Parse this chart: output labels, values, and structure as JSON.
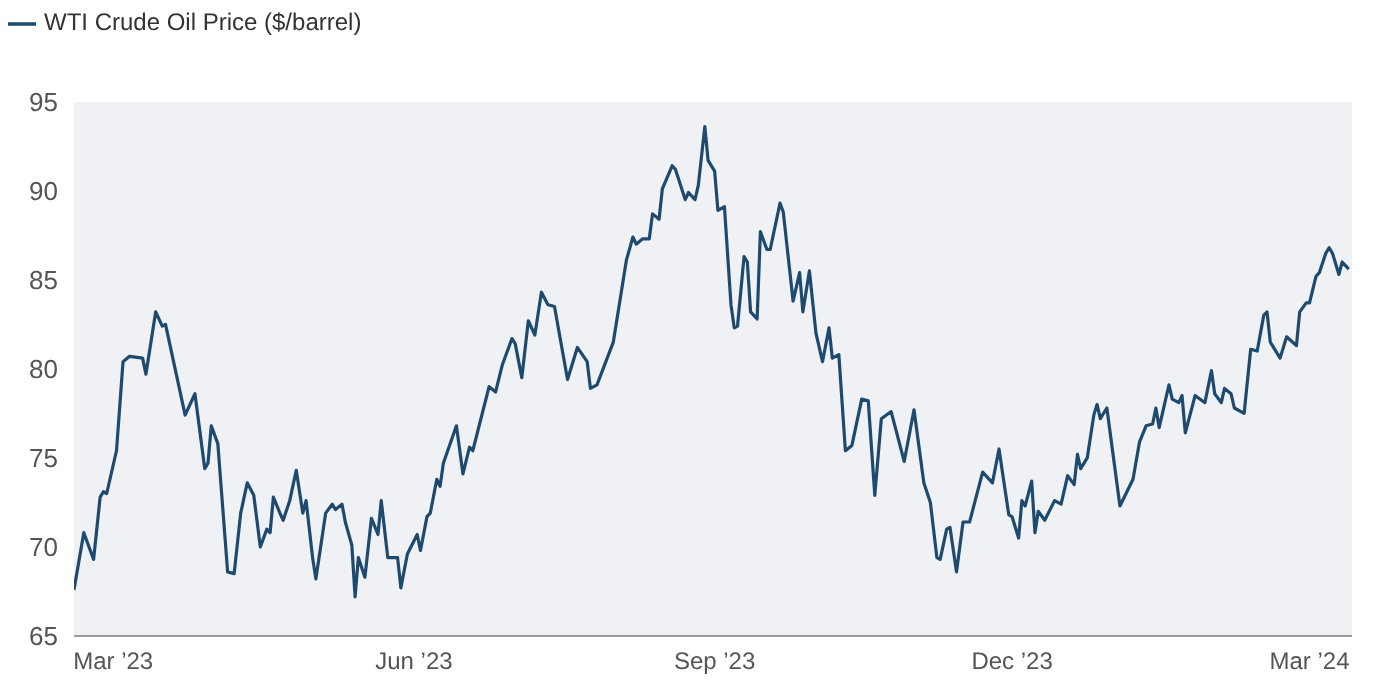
{
  "chart_data": {
    "type": "line",
    "legend": "top left",
    "marker": "none",
    "line_style": "solid",
    "grid": false,
    "x": [
      "2023-02-17",
      "2023-02-20",
      "2023-02-23",
      "2023-02-25",
      "2023-02-26",
      "2023-02-27",
      "2023-03-02",
      "2023-03-04",
      "2023-03-06",
      "2023-03-10",
      "2023-03-11",
      "2023-03-14",
      "2023-03-16",
      "2023-03-17",
      "2023-03-19",
      "2023-03-23",
      "2023-03-26",
      "2023-03-29",
      "2023-03-30",
      "2023-03-31",
      "2023-04-02",
      "2023-04-05",
      "2023-04-07",
      "2023-04-09",
      "2023-04-11",
      "2023-04-13",
      "2023-04-15",
      "2023-04-17",
      "2023-04-18",
      "2023-04-19",
      "2023-04-21",
      "2023-04-22",
      "2023-04-24",
      "2023-04-26",
      "2023-04-28",
      "2023-04-29",
      "2023-05-01",
      "2023-05-02",
      "2023-05-05",
      "2023-05-07",
      "2023-05-08",
      "2023-05-10",
      "2023-05-11",
      "2023-05-13",
      "2023-05-14",
      "2023-05-15",
      "2023-05-17",
      "2023-05-19",
      "2023-05-21",
      "2023-05-22",
      "2023-05-24",
      "2023-05-27",
      "2023-05-28",
      "2023-05-30",
      "2023-06-02",
      "2023-06-03",
      "2023-06-05",
      "2023-06-06",
      "2023-06-08",
      "2023-06-09",
      "2023-06-10",
      "2023-06-14",
      "2023-06-16",
      "2023-06-18",
      "2023-06-19",
      "2023-06-24",
      "2023-06-26",
      "2023-06-28",
      "2023-07-01",
      "2023-07-02",
      "2023-07-04",
      "2023-07-06",
      "2023-07-08",
      "2023-07-10",
      "2023-07-12",
      "2023-07-14",
      "2023-07-18",
      "2023-07-21",
      "2023-07-24",
      "2023-07-25",
      "2023-07-27",
      "2023-08-01",
      "2023-08-05",
      "2023-08-07",
      "2023-08-08",
      "2023-08-10",
      "2023-08-12",
      "2023-08-13",
      "2023-08-15",
      "2023-08-16",
      "2023-08-19",
      "2023-08-20",
      "2023-08-23",
      "2023-08-24",
      "2023-08-26",
      "2023-08-27",
      "2023-08-29",
      "2023-08-30",
      "2023-09-01",
      "2023-09-02",
      "2023-09-04",
      "2023-09-06",
      "2023-09-07",
      "2023-09-08",
      "2023-09-10",
      "2023-09-11",
      "2023-09-12",
      "2023-09-14",
      "2023-09-15",
      "2023-09-17",
      "2023-09-18",
      "2023-09-21",
      "2023-09-22",
      "2023-09-25",
      "2023-09-27",
      "2023-09-28",
      "2023-09-30",
      "2023-10-02",
      "2023-10-04",
      "2023-10-06",
      "2023-10-07",
      "2023-10-09",
      "2023-10-11",
      "2023-10-13",
      "2023-10-16",
      "2023-10-18",
      "2023-10-20",
      "2023-10-22",
      "2023-10-25",
      "2023-10-29",
      "2023-11-01",
      "2023-11-04",
      "2023-11-06",
      "2023-11-08",
      "2023-11-09",
      "2023-11-11",
      "2023-11-12",
      "2023-11-14",
      "2023-11-16",
      "2023-11-18",
      "2023-11-22",
      "2023-11-25",
      "2023-11-27",
      "2023-11-30",
      "2023-12-01",
      "2023-12-03",
      "2023-12-04",
      "2023-12-05",
      "2023-12-07",
      "2023-12-08",
      "2023-12-09",
      "2023-12-11",
      "2023-12-14",
      "2023-12-16",
      "2023-12-18",
      "2023-12-20",
      "2023-12-21",
      "2023-12-22",
      "2023-12-24",
      "2023-12-26",
      "2023-12-27",
      "2023-12-28",
      "2023-12-30",
      "2024-01-03",
      "2024-01-07",
      "2024-01-09",
      "2024-01-11",
      "2024-01-13",
      "2024-01-14",
      "2024-01-15",
      "2024-01-18",
      "2024-01-19",
      "2024-01-21",
      "2024-01-22",
      "2024-01-23",
      "2024-01-26",
      "2024-01-29",
      "2024-01-31",
      "2024-02-01",
      "2024-02-03",
      "2024-02-04",
      "2024-02-06",
      "2024-02-07",
      "2024-02-10",
      "2024-02-12",
      "2024-02-14",
      "2024-02-16",
      "2024-02-17",
      "2024-02-18",
      "2024-02-21",
      "2024-02-23",
      "2024-02-26",
      "2024-02-27",
      "2024-02-29",
      "2024-03-01",
      "2024-03-03",
      "2024-03-04",
      "2024-03-06",
      "2024-03-07",
      "2024-03-08",
      "2024-03-10",
      "2024-03-11",
      "2024-03-13"
    ],
    "series": [
      {
        "name": "WTI Crude Oil Price ($/barrel)",
        "color": "#1d4a6e",
        "values": [
          67.6,
          70.8,
          69.3,
          72.8,
          73.1,
          73.0,
          75.4,
          80.4,
          80.7,
          80.6,
          79.7,
          83.2,
          82.4,
          82.5,
          80.8,
          77.4,
          78.6,
          74.4,
          74.7,
          76.8,
          75.8,
          68.6,
          68.5,
          71.9,
          73.6,
          72.9,
          70.0,
          71.0,
          70.8,
          72.8,
          71.9,
          71.5,
          72.6,
          74.3,
          71.9,
          72.6,
          69.4,
          68.2,
          71.9,
          72.4,
          72.1,
          72.4,
          71.4,
          70.1,
          67.2,
          69.4,
          68.3,
          71.6,
          70.7,
          72.6,
          69.4,
          69.4,
          67.7,
          69.6,
          70.7,
          69.8,
          71.7,
          71.9,
          73.8,
          73.4,
          74.7,
          76.8,
          74.1,
          75.6,
          75.4,
          79.0,
          78.7,
          80.2,
          81.7,
          81.4,
          79.5,
          82.7,
          81.9,
          84.3,
          83.6,
          83.5,
          79.4,
          81.2,
          80.4,
          78.9,
          79.1,
          81.5,
          86.1,
          87.4,
          87.0,
          87.3,
          87.3,
          88.7,
          88.4,
          90.1,
          91.4,
          91.2,
          89.5,
          89.9,
          89.5,
          90.3,
          93.6,
          91.7,
          91.1,
          88.9,
          89.1,
          83.6,
          82.3,
          82.4,
          86.3,
          86.0,
          83.2,
          82.8,
          87.7,
          86.7,
          86.7,
          89.3,
          88.8,
          83.8,
          85.4,
          83.2,
          85.5,
          82.0,
          80.4,
          82.3,
          80.6,
          80.8,
          75.4,
          75.7,
          78.3,
          78.2,
          72.9,
          77.2,
          77.6,
          74.8,
          77.7,
          73.6,
          72.5,
          69.4,
          69.3,
          71.0,
          71.1,
          68.6,
          71.4,
          71.4,
          74.2,
          73.6,
          75.5,
          71.8,
          71.7,
          70.5,
          72.6,
          72.3,
          73.7,
          70.8,
          72.0,
          71.5,
          72.6,
          72.4,
          74.0,
          73.5,
          75.2,
          74.4,
          75.0,
          77.4,
          78.0,
          77.2,
          77.8,
          72.3,
          73.8,
          75.9,
          76.8,
          76.9,
          77.8,
          76.7,
          79.1,
          78.3,
          78.1,
          78.5,
          76.4,
          78.5,
          78.1,
          79.9,
          78.6,
          78.1,
          78.9,
          78.6,
          77.8,
          77.5,
          81.1,
          81.0,
          83.0,
          83.2,
          81.5,
          80.6,
          81.8,
          81.3,
          83.2,
          83.7,
          83.7,
          85.2,
          85.4,
          86.5,
          86.8,
          86.5,
          85.3,
          86.0,
          85.6
        ]
      }
    ],
    "xlim": [
      "2023-02-17",
      "2024-03-14"
    ],
    "xticks": [
      {
        "value": "2023-03-01",
        "label": "Mar ’23"
      },
      {
        "value": "2023-06-01",
        "label": "Jun ’23"
      },
      {
        "value": "2023-09-01",
        "label": "Sep ’23"
      },
      {
        "value": "2023-12-01",
        "label": "Dec ’23"
      },
      {
        "value": "2024-03-01",
        "label": "Mar ’24"
      }
    ],
    "ylim": [
      65,
      95
    ],
    "yticks": [
      65,
      70,
      75,
      80,
      85,
      90,
      95
    ]
  }
}
